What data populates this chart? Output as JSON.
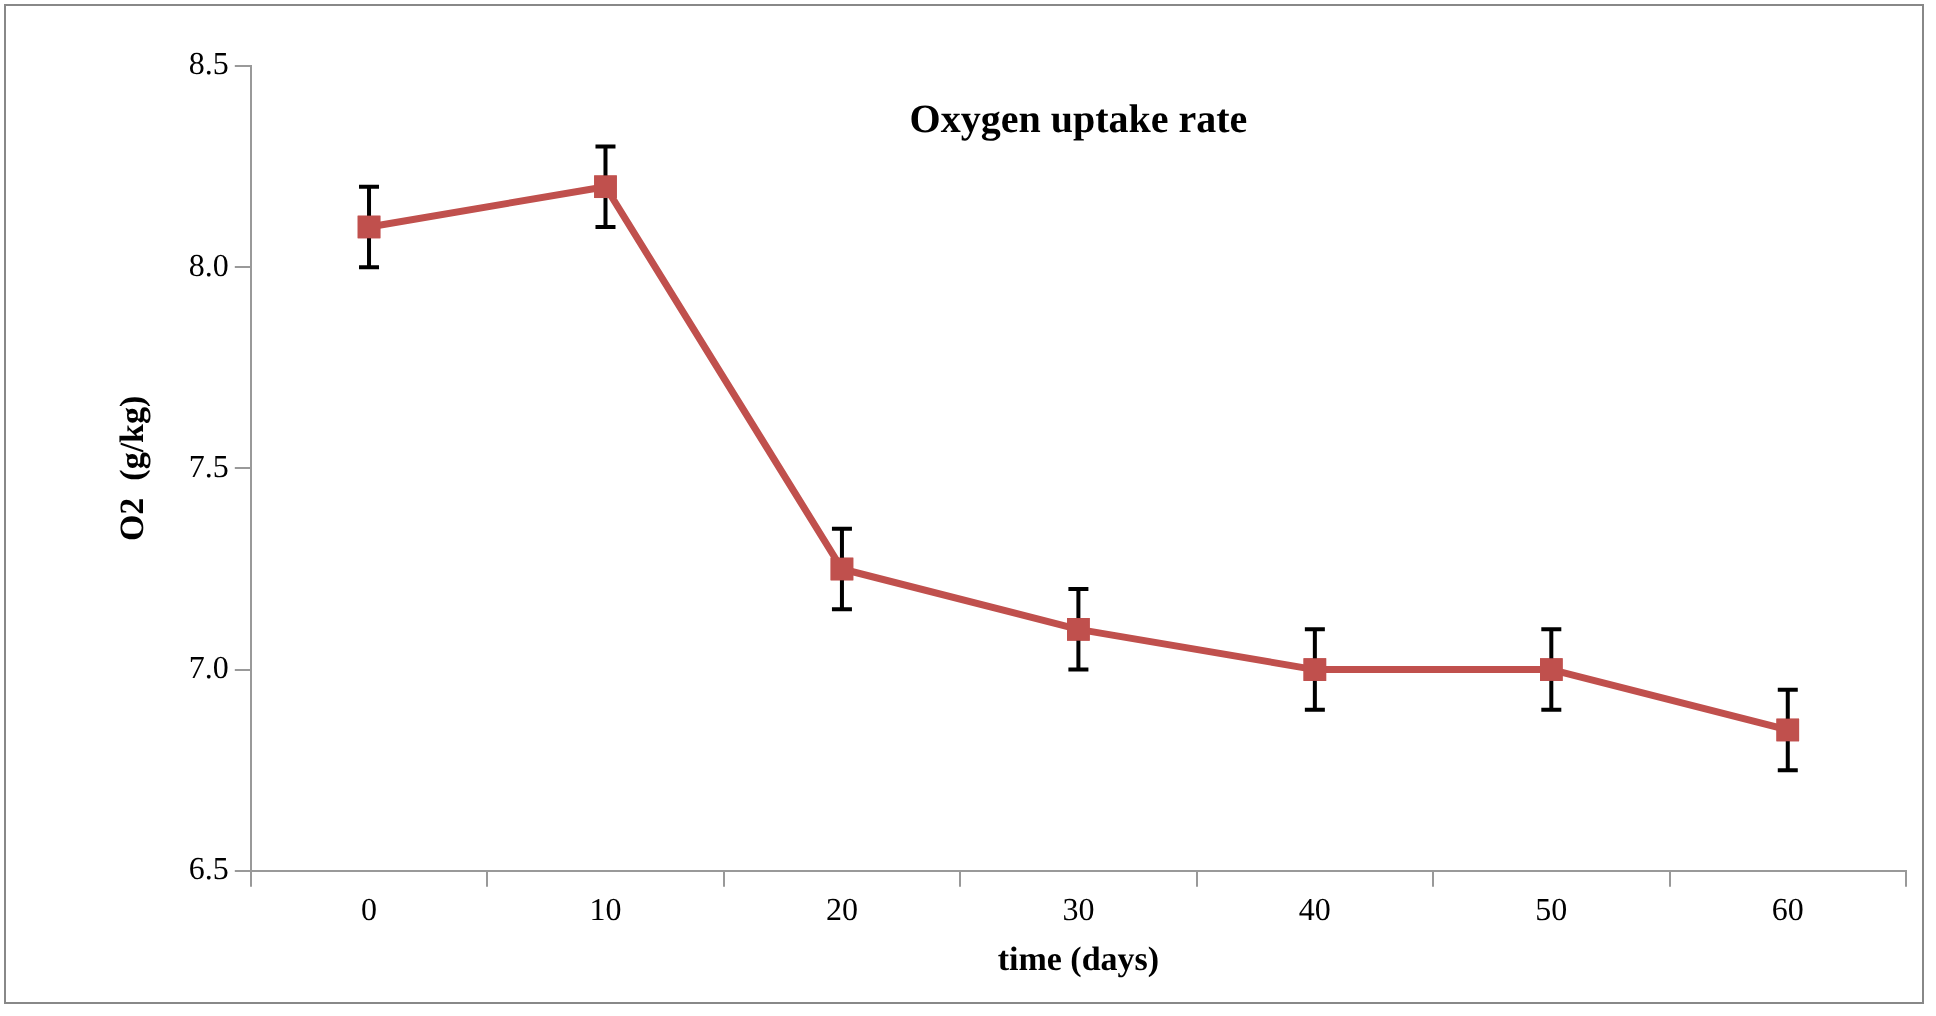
{
  "chart_data": {
    "type": "line",
    "title": "Oxygen uptake rate",
    "xlabel": "time (days)",
    "ylabel": "O2  (g/kg)",
    "categories": [
      "0",
      "10",
      "20",
      "30",
      "40",
      "50",
      "60"
    ],
    "series": [
      {
        "color": "#c0504d",
        "values": [
          8.1,
          8.2,
          7.25,
          7.1,
          7.0,
          7.0,
          6.85
        ],
        "errors": [
          0.1,
          0.1,
          0.1,
          0.1,
          0.1,
          0.1,
          0.1
        ]
      }
    ],
    "ylim": [
      6.5,
      8.5
    ],
    "yticks": [
      {
        "value": 6.5,
        "label": "6.5"
      },
      {
        "value": 7,
        "label": "7.0"
      },
      {
        "value": 7.5,
        "label": "7.5"
      },
      {
        "value": 8,
        "label": "8.0"
      },
      {
        "value": 8.5,
        "label": "8.5"
      }
    ],
    "grid": false,
    "legend": false,
    "marker": "square",
    "line_style": "solid"
  }
}
